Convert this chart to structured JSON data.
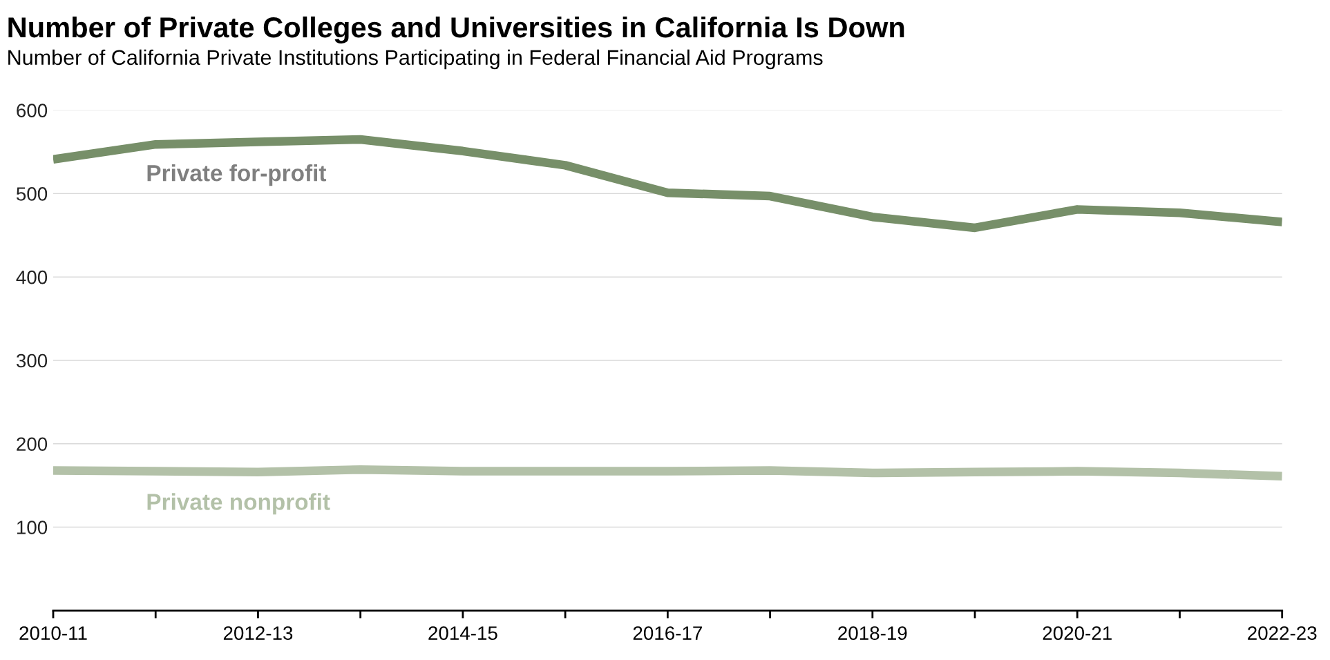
{
  "chart_data": {
    "type": "line",
    "title": "Number of Private Colleges and Universities in California Is Down",
    "subtitle": "Number of California Private Institutions Participating in Federal Financial Aid Programs",
    "categories": [
      "2010-11",
      null,
      "2012-13",
      null,
      "2014-15",
      null,
      "2016-17",
      null,
      "2018-19",
      null,
      "2020-21",
      null,
      "2022-23"
    ],
    "series": [
      {
        "name": "Private for-profit",
        "color": "#778f69",
        "values": [
          541,
          559,
          562,
          565,
          551,
          534,
          501,
          497,
          472,
          459,
          481,
          477,
          466
        ]
      },
      {
        "name": "Private nonprofit",
        "color": "#b3c1a8",
        "values": [
          168,
          167,
          166,
          169,
          167,
          167,
          167,
          168,
          165,
          166,
          167,
          165,
          161
        ]
      }
    ],
    "ylim": [
      0,
      600
    ],
    "yticks": [
      100,
      200,
      300,
      400,
      500,
      600
    ],
    "grid": "y",
    "legend": false,
    "marker": "none",
    "line_style": "solid"
  }
}
